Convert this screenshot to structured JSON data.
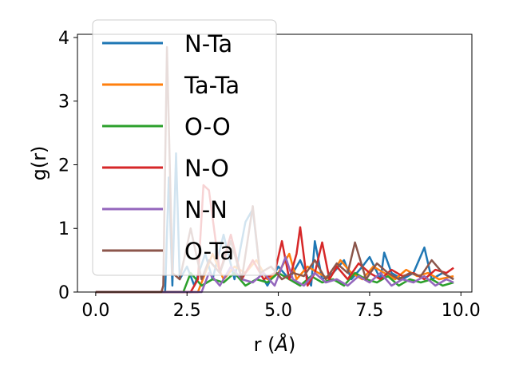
{
  "chart_data": {
    "type": "line",
    "xlabel": "r (",
    "xlabel_unit": "Å",
    "xlabel_close": ")",
    "ylabel": "g(r)",
    "xlim": [
      -0.5,
      10.3
    ],
    "ylim": [
      0,
      4.05
    ],
    "xticks": [
      0.0,
      2.5,
      5.0,
      7.5,
      10.0
    ],
    "xtick_labels": [
      "0.0",
      "2.5",
      "5.0",
      "7.5",
      "10.0"
    ],
    "yticks": [
      0,
      1,
      2,
      3,
      4
    ],
    "ytick_labels": [
      "0",
      "1",
      "2",
      "3",
      "4"
    ],
    "grid": false,
    "legend_position": "upper-left",
    "series": [
      {
        "name": "N-Ta",
        "color": "#1f77b4",
        "x": [
          0.0,
          1.9,
          2.0,
          2.1,
          2.2,
          2.3,
          2.5,
          2.7,
          3.0,
          3.2,
          3.5,
          3.8,
          4.1,
          4.3,
          4.5,
          4.7,
          5.0,
          5.3,
          5.6,
          5.9,
          6.0,
          6.2,
          6.5,
          6.8,
          7.0,
          7.3,
          7.5,
          7.8,
          7.9,
          8.1,
          8.4,
          8.7,
          9.0,
          9.2,
          9.5,
          9.8
        ],
        "y": [
          0.0,
          0.0,
          1.8,
          0.1,
          2.18,
          0.2,
          0.4,
          0.1,
          0.6,
          0.2,
          0.9,
          0.2,
          1.1,
          1.3,
          0.3,
          0.1,
          0.4,
          0.2,
          0.5,
          0.1,
          0.8,
          0.2,
          0.3,
          0.5,
          0.2,
          0.4,
          0.55,
          0.2,
          0.62,
          0.3,
          0.2,
          0.3,
          0.7,
          0.2,
          0.3,
          0.2
        ]
      },
      {
        "name": "Ta-Ta",
        "color": "#ff7f0e",
        "x": [
          0.0,
          2.8,
          3.0,
          3.2,
          3.5,
          3.8,
          4.1,
          4.4,
          4.7,
          5.0,
          5.3,
          5.5,
          5.8,
          6.1,
          6.4,
          6.7,
          7.0,
          7.3,
          7.6,
          7.9,
          8.2,
          8.5,
          8.8,
          9.1,
          9.4,
          9.8
        ],
        "y": [
          0.0,
          0.0,
          0.3,
          0.6,
          0.2,
          0.4,
          0.3,
          0.5,
          0.2,
          0.3,
          0.6,
          0.2,
          0.4,
          0.3,
          0.2,
          0.5,
          0.3,
          0.2,
          0.4,
          0.3,
          0.2,
          0.35,
          0.25,
          0.3,
          0.2,
          0.25
        ]
      },
      {
        "name": "O-O",
        "color": "#2ca02c",
        "x": [
          0.0,
          2.4,
          2.6,
          2.9,
          3.2,
          3.5,
          3.8,
          4.1,
          4.4,
          4.7,
          5.0,
          5.3,
          5.6,
          5.9,
          6.2,
          6.5,
          6.8,
          7.1,
          7.4,
          7.7,
          8.0,
          8.3,
          8.6,
          8.9,
          9.2,
          9.5,
          9.8
        ],
        "y": [
          0.0,
          0.0,
          0.3,
          0.1,
          0.2,
          0.15,
          0.3,
          0.1,
          0.2,
          0.15,
          0.3,
          0.2,
          0.1,
          0.25,
          0.15,
          0.2,
          0.1,
          0.3,
          0.2,
          0.15,
          0.25,
          0.1,
          0.2,
          0.15,
          0.2,
          0.1,
          0.15
        ]
      },
      {
        "name": "N-O",
        "color": "#d62728",
        "x": [
          0.0,
          2.6,
          2.8,
          2.95,
          3.1,
          3.4,
          3.7,
          4.0,
          4.3,
          4.6,
          4.9,
          5.1,
          5.3,
          5.5,
          5.6,
          5.8,
          6.0,
          6.2,
          6.4,
          6.6,
          6.9,
          7.2,
          7.5,
          7.8,
          8.1,
          8.4,
          8.7,
          9.0,
          9.3,
          9.6,
          9.8
        ],
        "y": [
          0.0,
          0.0,
          0.2,
          1.68,
          1.6,
          0.3,
          0.9,
          0.2,
          0.5,
          0.2,
          0.3,
          0.8,
          0.2,
          0.6,
          1.02,
          0.1,
          0.3,
          0.78,
          0.2,
          0.4,
          0.2,
          0.45,
          0.3,
          0.2,
          0.35,
          0.25,
          0.3,
          0.2,
          0.35,
          0.3,
          0.38
        ]
      },
      {
        "name": "N-N",
        "color": "#9467bd",
        "x": [
          0.0,
          2.9,
          3.1,
          3.4,
          3.7,
          4.0,
          4.3,
          4.6,
          4.9,
          5.2,
          5.4,
          5.7,
          6.0,
          6.3,
          6.6,
          6.9,
          7.2,
          7.5,
          7.8,
          8.1,
          8.4,
          8.7,
          9.0,
          9.3,
          9.6,
          9.8
        ],
        "y": [
          0.0,
          0.0,
          0.3,
          0.1,
          0.4,
          0.2,
          0.15,
          0.3,
          0.1,
          0.55,
          0.2,
          0.1,
          0.3,
          0.15,
          0.2,
          0.1,
          0.25,
          0.15,
          0.3,
          0.1,
          0.2,
          0.15,
          0.25,
          0.1,
          0.2,
          0.15
        ]
      },
      {
        "name": "O-Ta",
        "color": "#8c564b",
        "x": [
          0.0,
          1.8,
          1.85,
          1.95,
          2.1,
          2.3,
          2.6,
          2.9,
          3.1,
          3.4,
          3.7,
          4.0,
          4.3,
          4.5,
          4.8,
          5.1,
          5.4,
          5.7,
          6.0,
          6.3,
          6.6,
          6.9,
          7.1,
          7.4,
          7.7,
          8.0,
          8.3,
          8.6,
          8.9,
          9.2,
          9.5,
          9.8
        ],
        "y": [
          0.0,
          0.0,
          0.1,
          3.85,
          0.3,
          0.2,
          1.0,
          0.2,
          0.5,
          0.3,
          0.8,
          0.2,
          1.35,
          0.3,
          0.4,
          0.2,
          0.3,
          0.25,
          0.5,
          0.2,
          0.45,
          0.3,
          0.78,
          0.2,
          0.45,
          0.3,
          0.2,
          0.3,
          0.25,
          0.5,
          0.3,
          0.2
        ]
      }
    ]
  }
}
